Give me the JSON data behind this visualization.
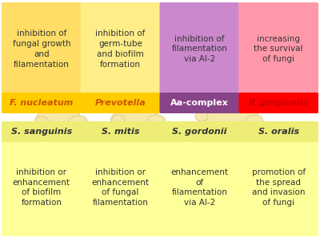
{
  "bg_color": "#ffffff",
  "top_boxes": [
    {
      "col": 0,
      "label_text": "S. sanguinis",
      "label_italic": true,
      "label_bold": true,
      "label_color": "#333333",
      "box_bg": "#ffff99",
      "label_bg": "#eeee77",
      "body_text": "inhibition or\nenhancement\nof biofilm\nformation"
    },
    {
      "col": 1,
      "label_text": "S. mitis",
      "label_italic": true,
      "label_bold": true,
      "label_color": "#333333",
      "box_bg": "#ffff99",
      "label_bg": "#eeee77",
      "body_text": "inhibition or\nenhancement\nof fungal\nfilamentation"
    },
    {
      "col": 2,
      "label_text": "S. gordonii",
      "label_italic": true,
      "label_bold": true,
      "label_color": "#333333",
      "box_bg": "#ffff99",
      "label_bg": "#eeee77",
      "body_text": "enhancement\nof\nfilamentation\nvia AI-2"
    },
    {
      "col": 3,
      "label_text": "S. oralis",
      "label_italic": true,
      "label_bold": true,
      "label_color": "#333333",
      "box_bg": "#ffff99",
      "label_bg": "#eeee77",
      "body_text": "promotion of\nthe spread\nand invasion\nof fungi"
    }
  ],
  "bottom_boxes": [
    {
      "col": 0,
      "label_text": "F. nucleatum",
      "label_italic": true,
      "label_bold": true,
      "label_color": "#cc5500",
      "box_bg": "#ffdd66",
      "label_bg": "#ffcc00",
      "body_text": "inhibition of\nfungal growth\nand\nfilamentation"
    },
    {
      "col": 1,
      "label_text": "Prevotella",
      "label_italic": true,
      "label_bold": true,
      "label_color": "#cc5500",
      "box_bg": "#ffee88",
      "label_bg": "#ffcc00",
      "body_text": "inhibition of\ngerm-tube\nand biofilm\nformation"
    },
    {
      "col": 2,
      "label_text": "Aa-complex",
      "label_italic": false,
      "label_bold": true,
      "label_color": "#ffffff",
      "box_bg": "#cc88cc",
      "label_bg": "#884488",
      "body_text": "inhibition of\nfilamentation\nvia AI-2"
    },
    {
      "col": 3,
      "label_text": "P. gingivalis",
      "label_italic": true,
      "label_bold": true,
      "label_color": "#cc0000",
      "box_bg": "#ff99aa",
      "label_bg": "#ff0000",
      "body_text": "increasing\nthe survival\nof fungi"
    }
  ],
  "fungi_color": "#f5e8a8",
  "fungi_edge": "#e0d090"
}
